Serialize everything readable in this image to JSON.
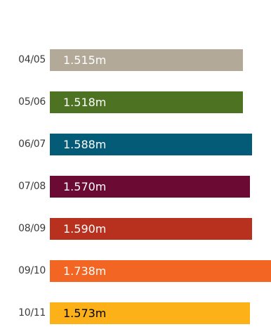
{
  "chart_data": {
    "type": "bar",
    "orientation": "horizontal",
    "categories": [
      "04/05",
      "05/06",
      "06/07",
      "07/08",
      "08/09",
      "09/10",
      "10/11"
    ],
    "values": [
      1.515,
      1.518,
      1.588,
      1.57,
      1.59,
      1.738,
      1.573
    ],
    "value_labels": [
      "1.515m",
      "1.518m",
      "1.588m",
      "1.570m",
      "1.590m",
      "1.738m",
      "1.573m"
    ],
    "colors": [
      "#b3a999",
      "#4d7222",
      "#045b77",
      "#6b0a33",
      "#b8311f",
      "#f26522",
      "#fbb117"
    ],
    "value_label_colors": [
      "#ffffff",
      "#ffffff",
      "#ffffff",
      "#ffffff",
      "#ffffff",
      "#ffffff",
      "#000000"
    ],
    "title": "",
    "xlabel": "",
    "ylabel": "",
    "grid": false,
    "legend": "none"
  }
}
